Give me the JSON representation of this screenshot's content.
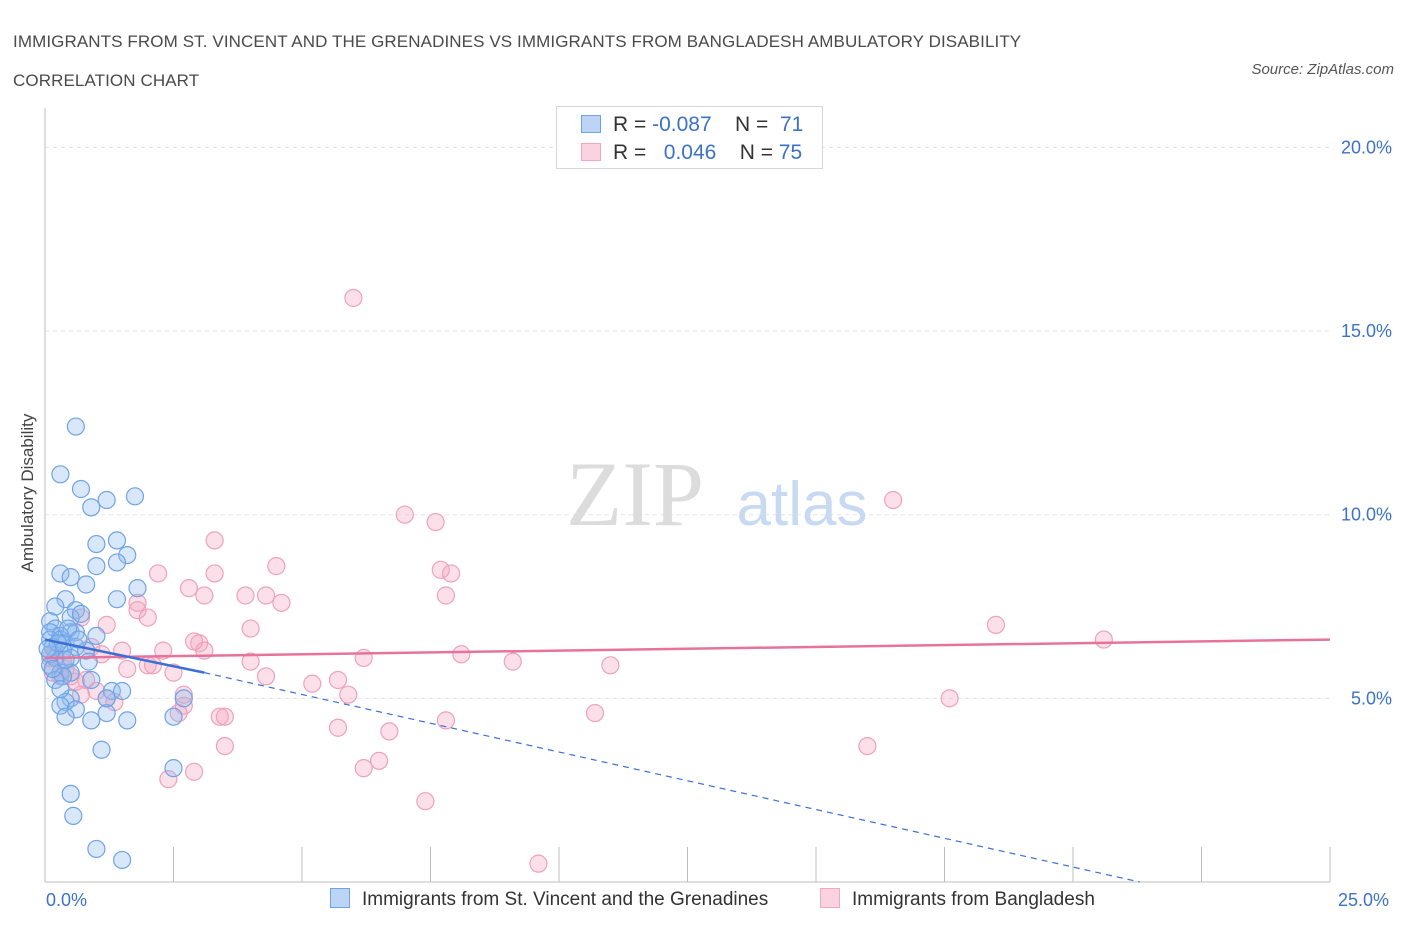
{
  "title_line1": "IMMIGRANTS FROM ST. VINCENT AND THE GRENADINES VS IMMIGRANTS FROM BANGLADESH AMBULATORY DISABILITY",
  "title_line2": "CORRELATION CHART",
  "source": "Source: ZipAtlas.com",
  "watermark": {
    "zip": "ZIP",
    "atlas": "atlas"
  },
  "legend": {
    "blue": {
      "r_label": "R = ",
      "r_value": "-0.087",
      "n_label": "N = ",
      "n_value": "71",
      "color": "#8db8ee"
    },
    "pink": {
      "r_label": "R = ",
      "r_value": "0.046",
      "n_label": "N = ",
      "n_value": "75",
      "color": "#f4a7c0"
    }
  },
  "bottom_legend": {
    "blue": "Immigrants from St. Vincent and the Grenadines",
    "pink": "Immigrants from Bangladesh"
  },
  "x_tick_left": "0.0%",
  "x_tick_right": "25.0%",
  "chart_data": {
    "type": "scatter",
    "title": "IMMIGRANTS FROM ST. VINCENT AND THE GRENADINES VS IMMIGRANTS FROM BANGLADESH AMBULATORY DISABILITY CORRELATION CHART",
    "xlabel": "",
    "ylabel": "Ambulatory Disability",
    "xlim": [
      0,
      25
    ],
    "ylim": [
      0,
      20
    ],
    "y_ticks": [
      5,
      10,
      15,
      20
    ],
    "y_tick_labels": [
      "5.0%",
      "10.0%",
      "15.0%",
      "20.0%"
    ],
    "grid": true,
    "legend_position": "top-center",
    "series": [
      {
        "name": "Immigrants from St. Vincent and the Grenadines",
        "color": "#6fa3e6",
        "line_color": "#3a6fd6",
        "trend": {
          "x": [
            0,
            3.1
          ],
          "y": [
            6.6,
            5.7
          ],
          "extended_to": [
            21.3,
            0
          ]
        },
        "points": [
          [
            0.6,
            12.4
          ],
          [
            0.3,
            11.1
          ],
          [
            0.7,
            10.7
          ],
          [
            0.9,
            10.2
          ],
          [
            1.2,
            10.4
          ],
          [
            1.75,
            10.5
          ],
          [
            1.0,
            9.2
          ],
          [
            1.4,
            9.3
          ],
          [
            1.6,
            8.9
          ],
          [
            1.4,
            8.7
          ],
          [
            1.0,
            8.6
          ],
          [
            0.3,
            8.4
          ],
          [
            0.5,
            8.3
          ],
          [
            0.8,
            8.1
          ],
          [
            1.8,
            8.0
          ],
          [
            0.4,
            7.7
          ],
          [
            1.4,
            7.7
          ],
          [
            0.2,
            7.5
          ],
          [
            0.6,
            7.4
          ],
          [
            0.5,
            7.2
          ],
          [
            0.1,
            7.1
          ],
          [
            0.2,
            6.9
          ],
          [
            0.1,
            6.8
          ],
          [
            0.5,
            6.8
          ],
          [
            0.6,
            6.8
          ],
          [
            0.3,
            6.7
          ],
          [
            0.1,
            6.6
          ],
          [
            0.3,
            6.6
          ],
          [
            0.4,
            6.5
          ],
          [
            0.15,
            6.4
          ],
          [
            0.6,
            6.4
          ],
          [
            0.8,
            6.3
          ],
          [
            0.35,
            6.3
          ],
          [
            0.2,
            6.1
          ],
          [
            0.5,
            6.1
          ],
          [
            1.0,
            6.7
          ],
          [
            0.1,
            5.9
          ],
          [
            0.3,
            5.7
          ],
          [
            0.5,
            5.7
          ],
          [
            0.35,
            5.6
          ],
          [
            0.9,
            5.5
          ],
          [
            0.2,
            5.5
          ],
          [
            1.3,
            5.2
          ],
          [
            1.5,
            5.2
          ],
          [
            0.5,
            5.0
          ],
          [
            0.4,
            4.9
          ],
          [
            0.3,
            4.8
          ],
          [
            2.7,
            5.0
          ],
          [
            0.6,
            4.7
          ],
          [
            1.2,
            4.6
          ],
          [
            0.4,
            4.5
          ],
          [
            0.9,
            4.4
          ],
          [
            1.6,
            4.4
          ],
          [
            2.5,
            4.5
          ],
          [
            1.1,
            3.6
          ],
          [
            2.5,
            3.1
          ],
          [
            0.5,
            2.4
          ],
          [
            0.55,
            1.8
          ],
          [
            1.0,
            0.9
          ],
          [
            1.5,
            0.6
          ],
          [
            0.1,
            6.2
          ],
          [
            0.25,
            6.5
          ],
          [
            0.45,
            6.9
          ],
          [
            0.7,
            7.3
          ],
          [
            0.15,
            5.8
          ],
          [
            0.85,
            6.0
          ],
          [
            0.05,
            6.35
          ],
          [
            0.4,
            6.05
          ],
          [
            1.2,
            5.0
          ],
          [
            0.3,
            5.25
          ],
          [
            0.65,
            6.6
          ]
        ]
      },
      {
        "name": "Immigrants from Bangladesh",
        "color": "#f4a7c0",
        "line_color": "#e8729b",
        "trend": {
          "x": [
            0,
            25
          ],
          "y": [
            6.1,
            6.6
          ]
        },
        "points": [
          [
            6.0,
            15.9
          ],
          [
            16.5,
            10.4
          ],
          [
            7.0,
            10.0
          ],
          [
            7.6,
            9.8
          ],
          [
            3.3,
            9.3
          ],
          [
            4.5,
            8.6
          ],
          [
            2.2,
            8.4
          ],
          [
            3.3,
            8.4
          ],
          [
            7.7,
            8.5
          ],
          [
            7.9,
            8.4
          ],
          [
            2.8,
            8.0
          ],
          [
            3.1,
            7.8
          ],
          [
            3.9,
            7.8
          ],
          [
            4.3,
            7.8
          ],
          [
            7.8,
            7.8
          ],
          [
            4.6,
            7.6
          ],
          [
            1.8,
            7.6
          ],
          [
            1.8,
            7.4
          ],
          [
            2.0,
            7.2
          ],
          [
            0.7,
            7.2
          ],
          [
            1.2,
            7.0
          ],
          [
            4.0,
            6.9
          ],
          [
            18.5,
            7.0
          ],
          [
            20.6,
            6.6
          ],
          [
            3.0,
            6.5
          ],
          [
            1.5,
            6.3
          ],
          [
            2.3,
            6.3
          ],
          [
            3.1,
            6.3
          ],
          [
            8.1,
            6.2
          ],
          [
            6.2,
            6.1
          ],
          [
            9.1,
            6.0
          ],
          [
            11.0,
            5.9
          ],
          [
            4.0,
            6.0
          ],
          [
            2.0,
            5.9
          ],
          [
            2.1,
            5.9
          ],
          [
            0.3,
            5.6
          ],
          [
            0.8,
            5.5
          ],
          [
            2.5,
            5.7
          ],
          [
            4.3,
            5.6
          ],
          [
            0.5,
            5.6
          ],
          [
            5.7,
            5.5
          ],
          [
            5.2,
            5.4
          ],
          [
            1.0,
            5.2
          ],
          [
            2.7,
            5.1
          ],
          [
            5.9,
            5.1
          ],
          [
            1.2,
            5.0
          ],
          [
            0.7,
            5.1
          ],
          [
            17.6,
            5.0
          ],
          [
            2.6,
            4.6
          ],
          [
            2.7,
            4.8
          ],
          [
            3.4,
            4.5
          ],
          [
            3.5,
            4.5
          ],
          [
            10.7,
            4.6
          ],
          [
            7.8,
            4.4
          ],
          [
            5.7,
            4.2
          ],
          [
            6.7,
            4.1
          ],
          [
            3.5,
            3.7
          ],
          [
            16.0,
            3.7
          ],
          [
            6.5,
            3.3
          ],
          [
            6.2,
            3.1
          ],
          [
            2.9,
            3.0
          ],
          [
            2.4,
            2.8
          ],
          [
            7.4,
            2.2
          ],
          [
            9.6,
            0.5
          ],
          [
            0.1,
            6.1
          ],
          [
            0.4,
            5.8
          ],
          [
            0.2,
            6.3
          ],
          [
            0.9,
            6.4
          ],
          [
            1.6,
            5.8
          ],
          [
            0.35,
            6.0
          ],
          [
            0.6,
            5.45
          ],
          [
            1.35,
            4.9
          ],
          [
            2.9,
            6.55
          ],
          [
            0.15,
            5.7
          ],
          [
            1.1,
            6.2
          ]
        ]
      }
    ]
  }
}
